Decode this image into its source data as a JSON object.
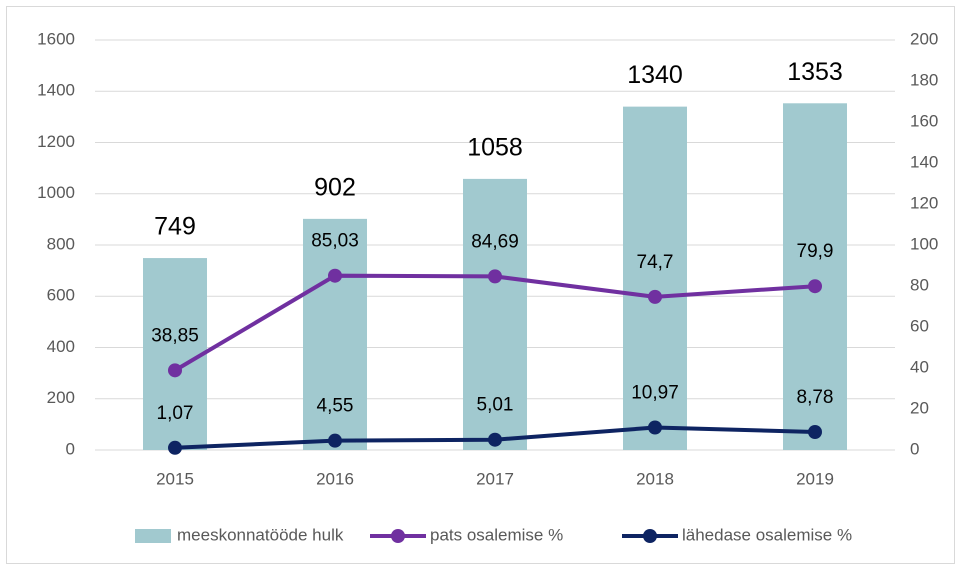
{
  "chart_data": {
    "type": "bar",
    "categories": [
      "2015",
      "2016",
      "2017",
      "2018",
      "2019"
    ],
    "series": [
      {
        "name": "meeskonnatööde hulk",
        "type": "bar",
        "axis": "y",
        "color": "#a1c9cf",
        "values": [
          749,
          902,
          1058,
          1340,
          1353
        ]
      },
      {
        "name": "pats osalemise %",
        "type": "line",
        "axis": "y2",
        "color": "#7030a0",
        "values": [
          38.85,
          85.03,
          84.69,
          74.7,
          79.9
        ],
        "value_labels": [
          "38,85",
          "85,03",
          "84,69",
          "74,7",
          "79,9"
        ]
      },
      {
        "name": "lähedase osalemise %",
        "type": "line",
        "axis": "y2",
        "color": "#0e2462",
        "values": [
          1.07,
          4.55,
          5.01,
          10.97,
          8.78
        ],
        "value_labels": [
          "1,07",
          "4,55",
          "5,01",
          "10,97",
          "8,78"
        ]
      }
    ],
    "ylim": [
      0,
      1600
    ],
    "yticks": [
      0,
      200,
      400,
      600,
      800,
      1000,
      1200,
      1400,
      1600
    ],
    "y2lim": [
      0,
      200
    ],
    "y2ticks": [
      0,
      20,
      40,
      60,
      80,
      100,
      120,
      140,
      160,
      180,
      200
    ],
    "grid": true,
    "legend": "bottom"
  }
}
